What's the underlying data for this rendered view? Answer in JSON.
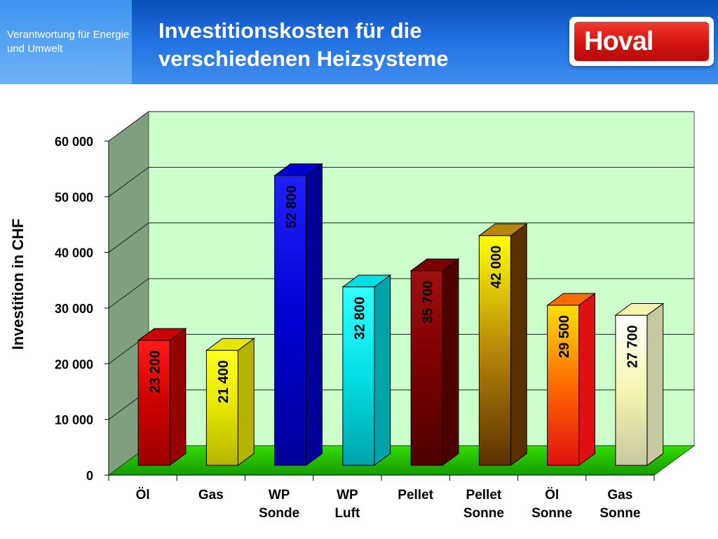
{
  "header": {
    "tagline": "Verantwortung für Energie und Umwelt",
    "title": "Investitionskosten für die verschiedenen Heizsysteme",
    "logo_text": "Hoval",
    "colors": {
      "header_blue": "#1f6fe0",
      "logo_red": "#d3140f"
    }
  },
  "chart_data": {
    "type": "bar",
    "ylabel": "Investition in CHF",
    "ylim": [
      0,
      60000
    ],
    "yticks": [
      0,
      10000,
      20000,
      30000,
      40000,
      50000,
      60000
    ],
    "ytick_labels": [
      "0",
      "10 000",
      "20 000",
      "30 000",
      "40 000",
      "50 000",
      "60 000"
    ],
    "grid": true,
    "three_d": true,
    "categories": [
      [
        "Öl"
      ],
      [
        "Gas"
      ],
      [
        "WP",
        "Sonde"
      ],
      [
        "WP",
        "Luft"
      ],
      [
        "Pellet"
      ],
      [
        "Pellet",
        "Sonne"
      ],
      [
        "Öl",
        "Sonne"
      ],
      [
        "Gas",
        "Sonne"
      ]
    ],
    "values": [
      23200,
      21400,
      52800,
      32800,
      35700,
      42000,
      29500,
      27700
    ],
    "value_labels": [
      "23 200",
      "21 400",
      "52 800",
      "32 800",
      "35 700",
      "42 000",
      "29 500",
      "27 700"
    ],
    "bar_colors": [
      [
        "#ff1a1a",
        "#cc0000",
        "#990000"
      ],
      [
        "#ffff20",
        "#e6e600",
        "#b3b300"
      ],
      [
        "#2020ff",
        "#0000d0",
        "#000099"
      ],
      [
        "#33ffff",
        "#00e0e6",
        "#00a3aa"
      ],
      [
        "#a01010",
        "#7a0000",
        "#4d0000"
      ],
      [
        "#ffff00",
        "#b8860b",
        "#5a3000"
      ],
      [
        "#ffe000",
        "#ff6a00",
        "#e01010"
      ],
      [
        "#ffffff",
        "#f5f5b0",
        "#c8c8a0"
      ]
    ],
    "wall_color": "#ccffcc",
    "side_wall_color": "#7fa07f",
    "floor_color": "#22cc00"
  }
}
